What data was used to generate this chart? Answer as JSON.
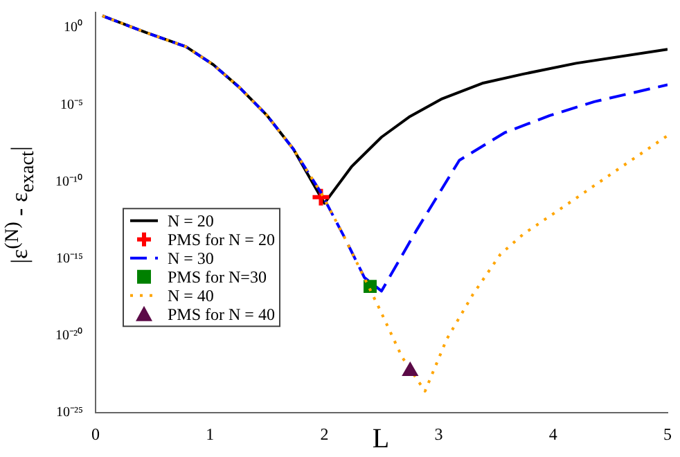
{
  "chart_data": {
    "type": "line",
    "xlabel": "L",
    "ylabel": "|ε$^{(N)}$ - ε$_{exact}$|",
    "log": "y",
    "grid": false,
    "legend": "left",
    "xlim": [
      0,
      5
    ],
    "xticks": [
      0,
      1,
      2,
      3,
      4,
      5
    ],
    "ylim": [
      1e-25,
      10
    ],
    "yticks": [
      {
        "value": 1e-25,
        "label": "10⁻²⁵"
      },
      {
        "value": 1e-20,
        "label": "10⁻²⁰"
      },
      {
        "value": 1e-15,
        "label": "10⁻¹⁵"
      },
      {
        "value": 1e-10,
        "label": "10⁻¹⁰"
      },
      {
        "value": 1e-05,
        "label": "10⁻⁵"
      },
      {
        "value": 1,
        "label": "10⁰"
      }
    ],
    "series": [
      {
        "name": "N = 20",
        "type": "line",
        "line_style": "solid",
        "marker": "none",
        "color": "#000000",
        "x": [
          0.06,
          0.44,
          0.79,
          1.03,
          1.26,
          1.5,
          1.73,
          2.0,
          2.24,
          2.5,
          2.74,
          3.03,
          3.38,
          3.74,
          4.2,
          5
        ],
        "values": [
          6.0,
          0.5,
          0.06,
          0.004,
          0.00013,
          2e-06,
          1.3e-08,
          4e-12,
          1e-09,
          8e-08,
          1.6e-06,
          2.5e-05,
          0.00025,
          0.001,
          0.005,
          0.04
        ]
      },
      {
        "name": "PMS for N = 20",
        "type": "scatter",
        "marker": "cross",
        "color": "#ff0000",
        "x": [
          1.97
        ],
        "values": [
          1e-11
        ]
      },
      {
        "name": "N = 30",
        "type": "line",
        "line_style": "dashed",
        "marker": "none",
        "color": "#0000ff",
        "x": [
          0.06,
          0.44,
          0.79,
          1.03,
          1.26,
          1.5,
          1.73,
          1.97,
          2.17,
          2.35,
          2.5,
          2.8,
          3.18,
          3.58,
          3.97,
          4.36,
          5
        ],
        "values": [
          6.0,
          0.5,
          0.06,
          0.004,
          0.00013,
          2e-06,
          1.3e-08,
          2e-11,
          3e-14,
          6e-17,
          8e-18,
          6e-14,
          2.5e-09,
          1.6e-07,
          2e-06,
          1.6e-05,
          0.0002
        ]
      },
      {
        "name": "PMS for N=30",
        "type": "scatter",
        "marker": "square",
        "color": "#008000",
        "x": [
          2.4
        ],
        "values": [
          1.6e-17
        ]
      },
      {
        "name": "N = 40",
        "type": "line",
        "line_style": "dotted",
        "marker": "none",
        "color": "#ffa500",
        "x": [
          0.06,
          0.44,
          0.79,
          1.03,
          1.26,
          1.5,
          1.73,
          1.97,
          2.17,
          2.48,
          2.68,
          2.88,
          3.07,
          3.3,
          3.54,
          3.74,
          4.17,
          4.56,
          5
        ],
        "values": [
          6.0,
          0.5,
          0.06,
          0.004,
          0.00013,
          2e-06,
          1.3e-08,
          2e-11,
          3e-14,
          6e-19,
          4e-22,
          2.5e-24,
          6e-21,
          5e-18,
          2e-15,
          4e-14,
          6e-12,
          6e-10,
          1e-07
        ]
      },
      {
        "name": "PMS for N = 40",
        "type": "scatter",
        "marker": "triangle",
        "color": "#5b0a47",
        "x": [
          2.75
        ],
        "values": [
          5e-23
        ]
      }
    ]
  }
}
